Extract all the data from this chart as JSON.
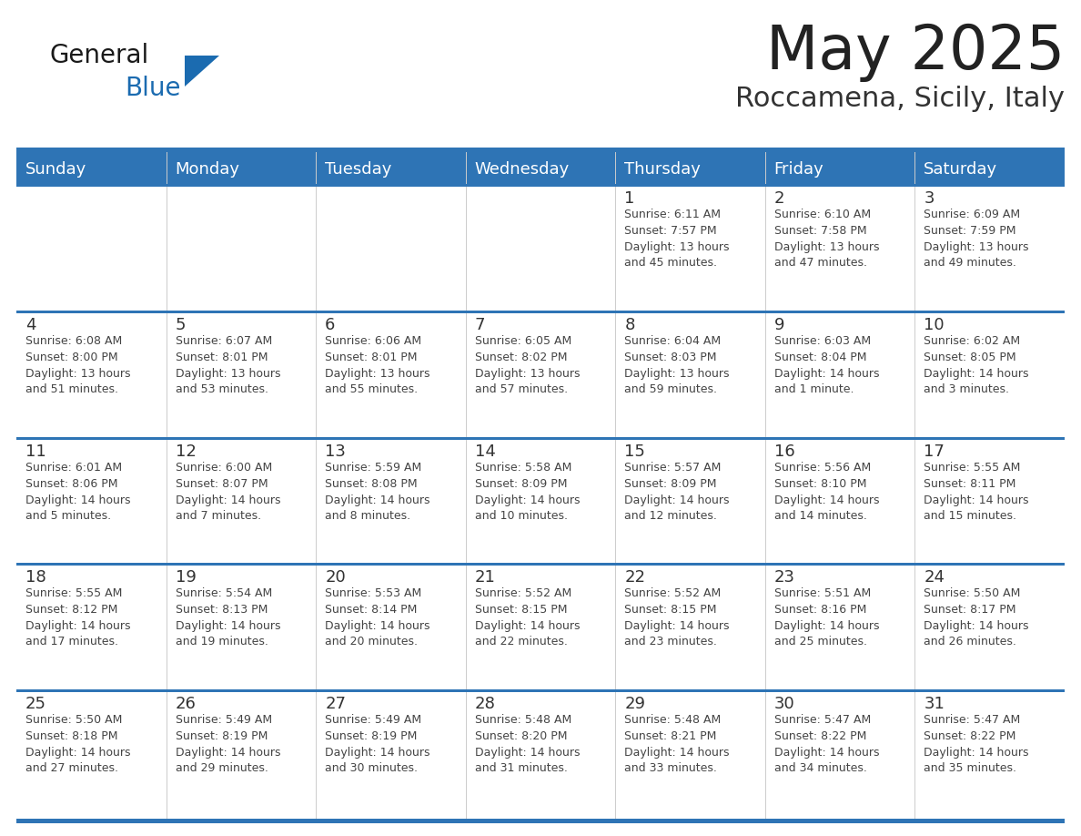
{
  "title": "May 2025",
  "subtitle": "Roccamena, Sicily, Italy",
  "days_of_week": [
    "Sunday",
    "Monday",
    "Tuesday",
    "Wednesday",
    "Thursday",
    "Friday",
    "Saturday"
  ],
  "header_bg": "#2E74B5",
  "header_text": "#FFFFFF",
  "cell_bg": "#FFFFFF",
  "cell_bg_alt": "#F2F2F2",
  "text_color": "#444444",
  "day_num_color": "#333333",
  "line_color": "#2E74B5",
  "row_border_color": "#2E74B5",
  "logo_general_color": "#1A1A1A",
  "logo_blue_color": "#1B6BB0",
  "calendar_data": [
    [
      null,
      null,
      null,
      null,
      {
        "day": "1",
        "sunrise": "6:11 AM",
        "sunset": "7:57 PM",
        "dl1": "Daylight: 13 hours",
        "dl2": "and 45 minutes."
      },
      {
        "day": "2",
        "sunrise": "6:10 AM",
        "sunset": "7:58 PM",
        "dl1": "Daylight: 13 hours",
        "dl2": "and 47 minutes."
      },
      {
        "day": "3",
        "sunrise": "6:09 AM",
        "sunset": "7:59 PM",
        "dl1": "Daylight: 13 hours",
        "dl2": "and 49 minutes."
      }
    ],
    [
      {
        "day": "4",
        "sunrise": "6:08 AM",
        "sunset": "8:00 PM",
        "dl1": "Daylight: 13 hours",
        "dl2": "and 51 minutes."
      },
      {
        "day": "5",
        "sunrise": "6:07 AM",
        "sunset": "8:01 PM",
        "dl1": "Daylight: 13 hours",
        "dl2": "and 53 minutes."
      },
      {
        "day": "6",
        "sunrise": "6:06 AM",
        "sunset": "8:01 PM",
        "dl1": "Daylight: 13 hours",
        "dl2": "and 55 minutes."
      },
      {
        "day": "7",
        "sunrise": "6:05 AM",
        "sunset": "8:02 PM",
        "dl1": "Daylight: 13 hours",
        "dl2": "and 57 minutes."
      },
      {
        "day": "8",
        "sunrise": "6:04 AM",
        "sunset": "8:03 PM",
        "dl1": "Daylight: 13 hours",
        "dl2": "and 59 minutes."
      },
      {
        "day": "9",
        "sunrise": "6:03 AM",
        "sunset": "8:04 PM",
        "dl1": "Daylight: 14 hours",
        "dl2": "and 1 minute."
      },
      {
        "day": "10",
        "sunrise": "6:02 AM",
        "sunset": "8:05 PM",
        "dl1": "Daylight: 14 hours",
        "dl2": "and 3 minutes."
      }
    ],
    [
      {
        "day": "11",
        "sunrise": "6:01 AM",
        "sunset": "8:06 PM",
        "dl1": "Daylight: 14 hours",
        "dl2": "and 5 minutes."
      },
      {
        "day": "12",
        "sunrise": "6:00 AM",
        "sunset": "8:07 PM",
        "dl1": "Daylight: 14 hours",
        "dl2": "and 7 minutes."
      },
      {
        "day": "13",
        "sunrise": "5:59 AM",
        "sunset": "8:08 PM",
        "dl1": "Daylight: 14 hours",
        "dl2": "and 8 minutes."
      },
      {
        "day": "14",
        "sunrise": "5:58 AM",
        "sunset": "8:09 PM",
        "dl1": "Daylight: 14 hours",
        "dl2": "and 10 minutes."
      },
      {
        "day": "15",
        "sunrise": "5:57 AM",
        "sunset": "8:09 PM",
        "dl1": "Daylight: 14 hours",
        "dl2": "and 12 minutes."
      },
      {
        "day": "16",
        "sunrise": "5:56 AM",
        "sunset": "8:10 PM",
        "dl1": "Daylight: 14 hours",
        "dl2": "and 14 minutes."
      },
      {
        "day": "17",
        "sunrise": "5:55 AM",
        "sunset": "8:11 PM",
        "dl1": "Daylight: 14 hours",
        "dl2": "and 15 minutes."
      }
    ],
    [
      {
        "day": "18",
        "sunrise": "5:55 AM",
        "sunset": "8:12 PM",
        "dl1": "Daylight: 14 hours",
        "dl2": "and 17 minutes."
      },
      {
        "day": "19",
        "sunrise": "5:54 AM",
        "sunset": "8:13 PM",
        "dl1": "Daylight: 14 hours",
        "dl2": "and 19 minutes."
      },
      {
        "day": "20",
        "sunrise": "5:53 AM",
        "sunset": "8:14 PM",
        "dl1": "Daylight: 14 hours",
        "dl2": "and 20 minutes."
      },
      {
        "day": "21",
        "sunrise": "5:52 AM",
        "sunset": "8:15 PM",
        "dl1": "Daylight: 14 hours",
        "dl2": "and 22 minutes."
      },
      {
        "day": "22",
        "sunrise": "5:52 AM",
        "sunset": "8:15 PM",
        "dl1": "Daylight: 14 hours",
        "dl2": "and 23 minutes."
      },
      {
        "day": "23",
        "sunrise": "5:51 AM",
        "sunset": "8:16 PM",
        "dl1": "Daylight: 14 hours",
        "dl2": "and 25 minutes."
      },
      {
        "day": "24",
        "sunrise": "5:50 AM",
        "sunset": "8:17 PM",
        "dl1": "Daylight: 14 hours",
        "dl2": "and 26 minutes."
      }
    ],
    [
      {
        "day": "25",
        "sunrise": "5:50 AM",
        "sunset": "8:18 PM",
        "dl1": "Daylight: 14 hours",
        "dl2": "and 27 minutes."
      },
      {
        "day": "26",
        "sunrise": "5:49 AM",
        "sunset": "8:19 PM",
        "dl1": "Daylight: 14 hours",
        "dl2": "and 29 minutes."
      },
      {
        "day": "27",
        "sunrise": "5:49 AM",
        "sunset": "8:19 PM",
        "dl1": "Daylight: 14 hours",
        "dl2": "and 30 minutes."
      },
      {
        "day": "28",
        "sunrise": "5:48 AM",
        "sunset": "8:20 PM",
        "dl1": "Daylight: 14 hours",
        "dl2": "and 31 minutes."
      },
      {
        "day": "29",
        "sunrise": "5:48 AM",
        "sunset": "8:21 PM",
        "dl1": "Daylight: 14 hours",
        "dl2": "and 33 minutes."
      },
      {
        "day": "30",
        "sunrise": "5:47 AM",
        "sunset": "8:22 PM",
        "dl1": "Daylight: 14 hours",
        "dl2": "and 34 minutes."
      },
      {
        "day": "31",
        "sunrise": "5:47 AM",
        "sunset": "8:22 PM",
        "dl1": "Daylight: 14 hours",
        "dl2": "and 35 minutes."
      }
    ]
  ]
}
